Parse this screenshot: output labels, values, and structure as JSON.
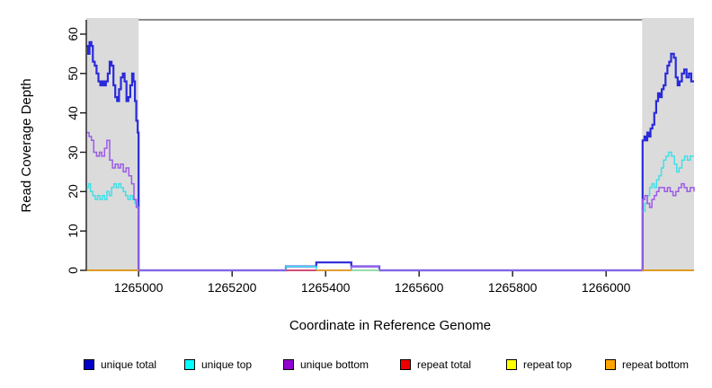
{
  "figure": {
    "background": "#FFFFFF",
    "plot_border_color": "#8A8A8A",
    "axis_color": "#1A1A1A"
  },
  "chart_data": {
    "type": "line",
    "subtype": "step-coverage-plot",
    "title": "",
    "xlabel": "Coordinate in Reference Genome",
    "ylabel": "Read Coverage Depth",
    "xlim": [
      1264888,
      1266188
    ],
    "ylim": [
      0,
      63.6
    ],
    "xticks": [
      1265000,
      1265200,
      1265400,
      1265600,
      1265800,
      1266000
    ],
    "yticks": [
      0,
      10,
      20,
      30,
      40,
      50,
      60
    ],
    "grid": "off",
    "legend_position": "bottom-horizontal",
    "shaded_regions": [
      {
        "x0": 1264888,
        "x1": 1265000,
        "color": "#DBDBDB",
        "meaning": "flanking region"
      },
      {
        "x0": 1266077,
        "x1": 1266188,
        "color": "#DBDBDB",
        "meaning": "flanking region"
      }
    ],
    "legend": [
      {
        "label": "unique total",
        "color": "#0000CD"
      },
      {
        "label": "unique top",
        "color": "#00FFFF"
      },
      {
        "label": "unique bottom",
        "color": "#9400D3"
      },
      {
        "label": "repeat total",
        "color": "#EE0000"
      },
      {
        "label": "repeat top",
        "color": "#FFFF00"
      },
      {
        "label": "repeat bottom",
        "color": "#FFA500"
      }
    ],
    "series": [
      {
        "name": "unique total",
        "color": "#0000CD",
        "render_color": "#2A2AD9",
        "segments": [
          [
            [
              1264889,
              57
            ],
            [
              1264892,
              55
            ],
            [
              1264895,
              58
            ],
            [
              1264899,
              57
            ],
            [
              1264902,
              53
            ],
            [
              1264906,
              52
            ],
            [
              1264910,
              50
            ],
            [
              1264914,
              48
            ],
            [
              1264918,
              47
            ],
            [
              1264922,
              48
            ],
            [
              1264926,
              47
            ],
            [
              1264930,
              48
            ],
            [
              1264934,
              50
            ],
            [
              1264938,
              53
            ],
            [
              1264942,
              52
            ],
            [
              1264946,
              47
            ],
            [
              1264950,
              44
            ],
            [
              1264954,
              43
            ],
            [
              1264958,
              46
            ],
            [
              1264962,
              49
            ],
            [
              1264966,
              50
            ],
            [
              1264970,
              48
            ],
            [
              1264974,
              43
            ],
            [
              1264978,
              44
            ],
            [
              1264982,
              47
            ],
            [
              1264986,
              50
            ],
            [
              1264989,
              48
            ],
            [
              1264992,
              43
            ],
            [
              1264995,
              38
            ],
            [
              1264998,
              35
            ],
            [
              1265000,
              0
            ],
            [
              1265315,
              1
            ],
            [
              1265380,
              2
            ],
            [
              1265455,
              1
            ],
            [
              1265515,
              0
            ],
            [
              1266078,
              33
            ],
            [
              1266082,
              34
            ],
            [
              1266085,
              33
            ],
            [
              1266088,
              35
            ],
            [
              1266091,
              34
            ],
            [
              1266095,
              36
            ],
            [
              1266099,
              37
            ],
            [
              1266103,
              40
            ],
            [
              1266107,
              43
            ],
            [
              1266111,
              45
            ],
            [
              1266115,
              44
            ],
            [
              1266119,
              46
            ],
            [
              1266123,
              47
            ],
            [
              1266127,
              50
            ],
            [
              1266131,
              52
            ],
            [
              1266135,
              53
            ],
            [
              1266139,
              55
            ],
            [
              1266145,
              54
            ],
            [
              1266149,
              49
            ],
            [
              1266153,
              47
            ],
            [
              1266157,
              48
            ],
            [
              1266162,
              50
            ],
            [
              1266167,
              51
            ],
            [
              1266172,
              49
            ],
            [
              1266177,
              50
            ],
            [
              1266182,
              48
            ],
            [
              1266188,
              48
            ]
          ]
        ]
      },
      {
        "name": "unique top",
        "color": "#00FFFF",
        "render_color": "#40E0E8",
        "segments": [
          [
            [
              1264889,
              21
            ],
            [
              1264893,
              22
            ],
            [
              1264897,
              20
            ],
            [
              1264902,
              19
            ],
            [
              1264907,
              18
            ],
            [
              1264912,
              19
            ],
            [
              1264917,
              18
            ],
            [
              1264922,
              19
            ],
            [
              1264927,
              18
            ],
            [
              1264932,
              20
            ],
            [
              1264937,
              19
            ],
            [
              1264942,
              21
            ],
            [
              1264947,
              22
            ],
            [
              1264952,
              21
            ],
            [
              1264957,
              22
            ],
            [
              1264962,
              21
            ],
            [
              1264967,
              20
            ],
            [
              1264972,
              19
            ],
            [
              1264977,
              18
            ],
            [
              1264982,
              19
            ],
            [
              1264987,
              18
            ],
            [
              1264992,
              17
            ],
            [
              1264997,
              16
            ],
            [
              1265000,
              0
            ],
            [
              1265315,
              1
            ],
            [
              1265380,
              0
            ],
            [
              1266078,
              15
            ],
            [
              1266083,
              17
            ],
            [
              1266088,
              19
            ],
            [
              1266093,
              21
            ],
            [
              1266098,
              22
            ],
            [
              1266103,
              21
            ],
            [
              1266108,
              23
            ],
            [
              1266113,
              24
            ],
            [
              1266118,
              26
            ],
            [
              1266123,
              28
            ],
            [
              1266128,
              29
            ],
            [
              1266134,
              30
            ],
            [
              1266140,
              29
            ],
            [
              1266146,
              27
            ],
            [
              1266151,
              25
            ],
            [
              1266156,
              26
            ],
            [
              1266162,
              28
            ],
            [
              1266168,
              29
            ],
            [
              1266174,
              28
            ],
            [
              1266180,
              29
            ],
            [
              1266188,
              29
            ]
          ]
        ]
      },
      {
        "name": "unique bottom",
        "color": "#9400D3",
        "render_color": "#9D5BE8",
        "segments": [
          [
            [
              1264889,
              35
            ],
            [
              1264894,
              34
            ],
            [
              1264899,
              33
            ],
            [
              1264904,
              30
            ],
            [
              1264910,
              29
            ],
            [
              1264916,
              30
            ],
            [
              1264921,
              29
            ],
            [
              1264927,
              31
            ],
            [
              1264932,
              33
            ],
            [
              1264938,
              28
            ],
            [
              1264944,
              26
            ],
            [
              1264950,
              27
            ],
            [
              1264956,
              26
            ],
            [
              1264961,
              27
            ],
            [
              1264967,
              25
            ],
            [
              1264973,
              26
            ],
            [
              1264979,
              24
            ],
            [
              1264985,
              22
            ],
            [
              1264990,
              18
            ],
            [
              1264995,
              16
            ],
            [
              1265000,
              0
            ],
            [
              1265455,
              1
            ],
            [
              1265515,
              0
            ],
            [
              1266078,
              18
            ],
            [
              1266083,
              19
            ],
            [
              1266088,
              17
            ],
            [
              1266093,
              16
            ],
            [
              1266098,
              18
            ],
            [
              1266103,
              19
            ],
            [
              1266108,
              20
            ],
            [
              1266113,
              21
            ],
            [
              1266119,
              21
            ],
            [
              1266125,
              20
            ],
            [
              1266131,
              21
            ],
            [
              1266137,
              20
            ],
            [
              1266143,
              19
            ],
            [
              1266149,
              20
            ],
            [
              1266155,
              21
            ],
            [
              1266161,
              22
            ],
            [
              1266167,
              21
            ],
            [
              1266173,
              20
            ],
            [
              1266180,
              21
            ],
            [
              1266188,
              20
            ]
          ]
        ]
      },
      {
        "name": "repeat total",
        "color": "#EE0000",
        "render_color": "#E8415F",
        "segments": [
          [
            [
              1265315,
              0
            ],
            [
              1265380,
              0
            ]
          ]
        ]
      },
      {
        "name": "repeat top",
        "color": "#FFFF00",
        "render_color": "#A9E8A6",
        "segments": [
          [
            [
              1265455,
              0
            ],
            [
              1265515,
              0
            ]
          ]
        ]
      },
      {
        "name": "repeat bottom",
        "color": "#FFA500",
        "render_color": "#FFA500",
        "segments": [
          [
            [
              1264889,
              0
            ],
            [
              1265000,
              0
            ]
          ],
          [
            [
              1265380,
              0
            ],
            [
              1265455,
              0
            ]
          ],
          [
            [
              1266077,
              0
            ],
            [
              1266188,
              0
            ]
          ]
        ]
      }
    ]
  }
}
